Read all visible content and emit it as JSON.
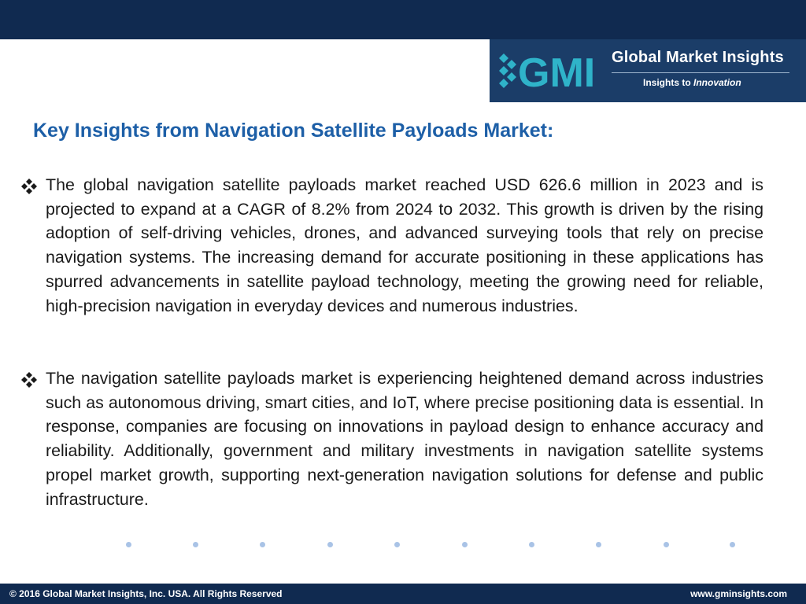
{
  "header": {
    "bar_color": "#102a50"
  },
  "logo": {
    "mark_text": "GMI",
    "title": "Global Market Insights",
    "tagline_prefix": "Insights to ",
    "tagline_emphasis": "Innovation",
    "background": "#1b3d68"
  },
  "content": {
    "heading": "Key Insights from Navigation Satellite Payloads Market:",
    "heading_color": "#1d5fa7",
    "bullet_icon": "diamond-bullet-icon",
    "bullets": [
      "The global navigation satellite payloads market reached USD 626.6 million in 2023 and is projected to expand at a CAGR of 8.2% from 2024 to 2032.  This growth is driven by the rising adoption of self-driving vehicles, drones, and advanced surveying tools that rely on precise navigation systems. The increasing demand for accurate positioning in these applications has spurred advancements in satellite payload technology, meeting the growing need for reliable, high-precision navigation in everyday devices and numerous industries.",
      "The navigation satellite payloads market is experiencing heightened demand across industries such as autonomous driving, smart cities, and IoT, where precise positioning data is essential. In response, companies are focusing on innovations in payload design to enhance accuracy and reliability. Additionally, government and military investments in navigation satellite systems propel market growth, supporting next-generation navigation solutions for defense and public infrastructure."
    ]
  },
  "decoration": {
    "dot_count": 10,
    "dot_color": "#a9c3e6"
  },
  "footer": {
    "copyright": "© 2016 Global Market Insights, Inc. USA.  All Rights Reserved",
    "website": "www.gminsights.com"
  }
}
